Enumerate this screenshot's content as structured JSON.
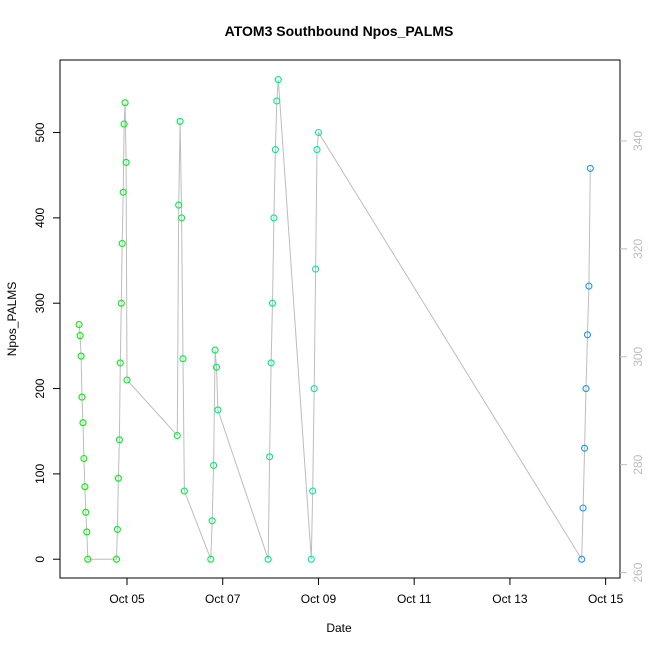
{
  "chart_data": {
    "type": "scatter",
    "title": "ATOM3 Southbound Npos_PALMS",
    "xlabel": "Date",
    "ylabel": "Npos_PALMS",
    "x_ticks": [
      "Oct 05",
      "Oct 07",
      "Oct 09",
      "Oct 11",
      "Oct 13",
      "Oct 15"
    ],
    "x_tick_days": [
      5,
      7,
      9,
      11,
      13,
      15
    ],
    "xlim": [
      3.6,
      15.3
    ],
    "ylim": [
      -22,
      585
    ],
    "y_ticks": [
      0,
      100,
      200,
      300,
      400,
      500
    ],
    "y2_ticks": [
      260,
      280,
      300,
      320,
      340
    ],
    "y2lim": [
      259,
      355
    ],
    "grid": false,
    "point_color_scale": [
      "#00ee00",
      "#00e6b0",
      "#1e96e6"
    ],
    "line_color": "#bdbdbd",
    "series": [
      {
        "x": [
          4.0,
          4.02,
          4.04,
          4.06,
          4.08,
          4.1,
          4.12,
          4.14,
          4.16,
          4.18
        ],
        "y": [
          275,
          262,
          238,
          190,
          160,
          118,
          85,
          55,
          32,
          0
        ]
      },
      {
        "x": [
          4.78,
          4.8,
          4.82,
          4.84,
          4.86,
          4.88,
          4.9,
          4.92,
          4.94,
          4.96,
          4.98,
          5.0
        ],
        "y": [
          0,
          35,
          95,
          140,
          230,
          300,
          370,
          430,
          510,
          535,
          465,
          210
        ]
      },
      {
        "x": [
          6.05,
          6.08,
          6.11,
          6.14,
          6.17,
          6.2
        ],
        "y": [
          145,
          415,
          513,
          400,
          235,
          80
        ]
      },
      {
        "x": [
          6.75,
          6.78,
          6.81,
          6.84,
          6.87,
          6.9
        ],
        "y": [
          0,
          45,
          110,
          245,
          225,
          175
        ]
      },
      {
        "x": [
          7.95,
          7.98,
          8.01,
          8.04,
          8.07,
          8.1,
          8.13,
          8.16
        ],
        "y": [
          0,
          120,
          230,
          300,
          400,
          480,
          537,
          562
        ]
      },
      {
        "x": [
          8.85,
          8.88,
          8.91,
          8.94,
          8.97,
          9.0
        ],
        "y": [
          0,
          80,
          200,
          340,
          480,
          500
        ]
      },
      {
        "x": [
          14.5,
          14.53,
          14.56,
          14.59,
          14.62,
          14.65,
          14.68
        ],
        "y": [
          0,
          60,
          130,
          200,
          263,
          320,
          458
        ]
      }
    ]
  }
}
